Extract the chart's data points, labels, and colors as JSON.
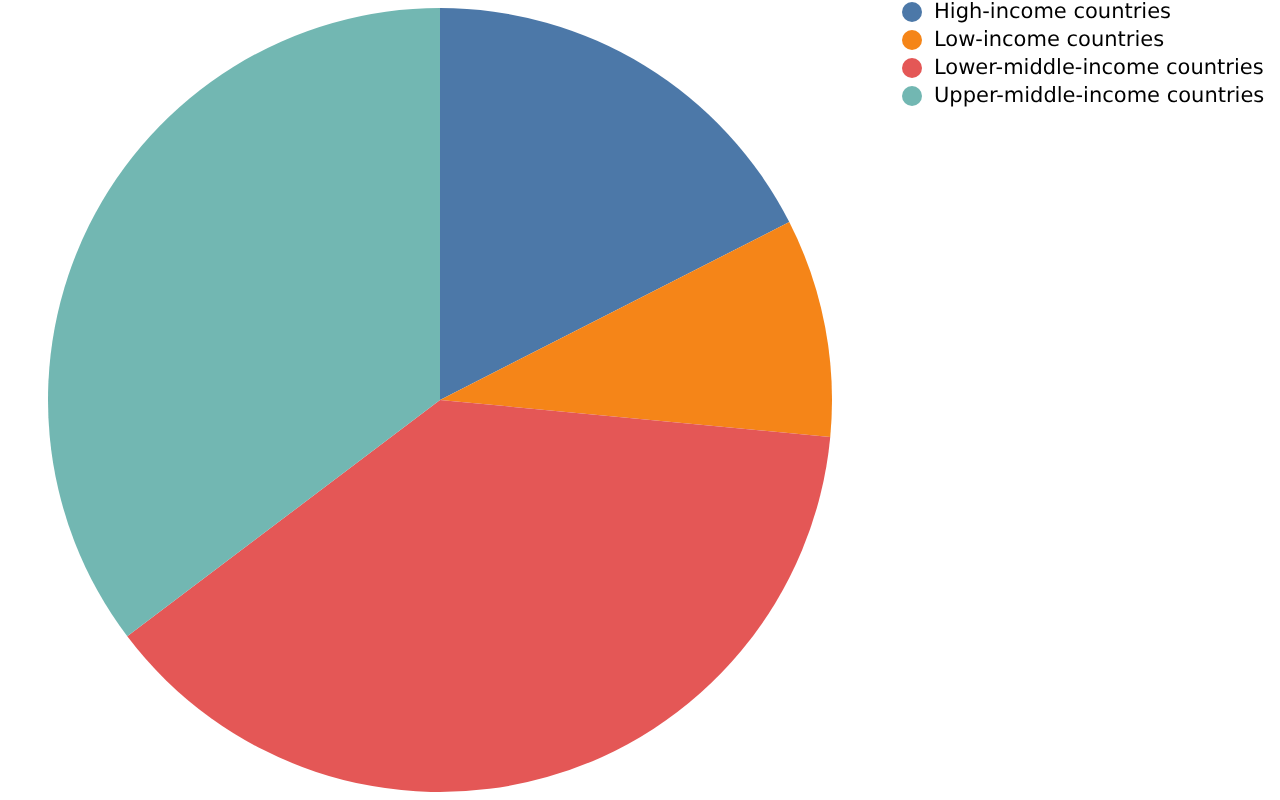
{
  "chart_data": {
    "type": "pie",
    "categories": [
      "High-income countries",
      "Low-income countries",
      "Lower-middle-income countries",
      "Upper-middle-income countries"
    ],
    "values": [
      17.5,
      9.0,
      38.2,
      35.3
    ],
    "colors": [
      "#4c78a8",
      "#f58518",
      "#e45756",
      "#72b7b2"
    ],
    "legend": "top right"
  }
}
